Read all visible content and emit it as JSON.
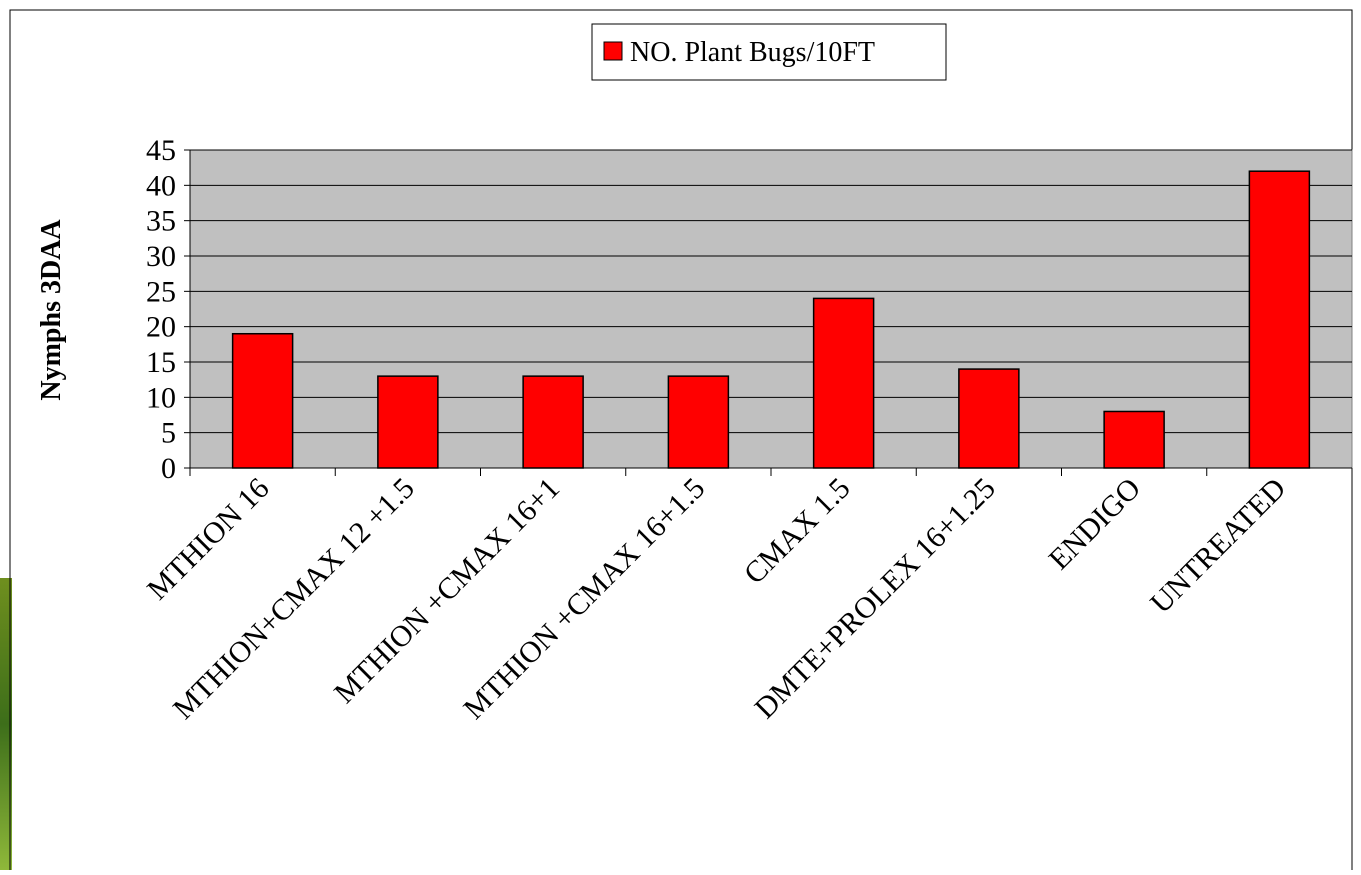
{
  "chart_data": {
    "type": "bar",
    "y_axis_label": "Nymphs 3DAA",
    "categories": [
      "MTHION 16",
      "MTHION+CMAX 12 +1.5",
      "MTHION +CMAX 16+1",
      "MTHION +CMAX 16+1.5",
      "CMAX 1.5",
      "DMTE+PROLEX 16+1.25",
      "ENDIGO",
      "UNTREATED"
    ],
    "series": [
      {
        "name": "NO. Plant Bugs/10FT",
        "color": "#ff0000",
        "values": [
          19,
          13,
          13,
          13,
          24,
          14,
          8,
          42
        ]
      }
    ],
    "ylim": [
      0,
      45
    ],
    "yticks": [
      0,
      5,
      10,
      15,
      20,
      25,
      30,
      35,
      40,
      45
    ],
    "grid": true,
    "legend": "top"
  }
}
